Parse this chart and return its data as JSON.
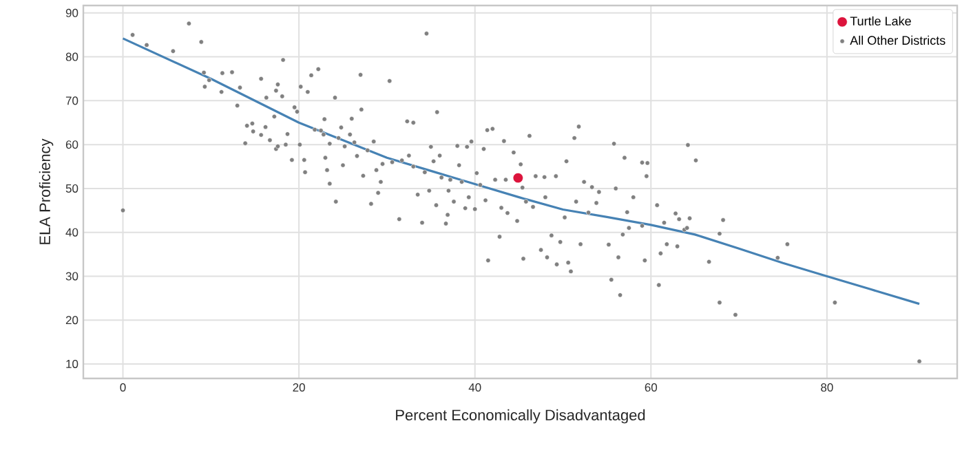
{
  "chart_data": {
    "type": "scatter",
    "xlabel": "Percent Economically Disadvantaged",
    "ylabel": "ELA Proficiency",
    "xlim": [
      -4.5,
      94.8
    ],
    "ylim": [
      6.7,
      91.7
    ],
    "xticks": [
      0,
      20,
      40,
      60,
      80
    ],
    "yticks": [
      10,
      20,
      30,
      40,
      50,
      60,
      70,
      80,
      90
    ],
    "grid": true,
    "legend": "top right",
    "marker": "circle",
    "series": [
      {
        "name": "Turtle Lake",
        "color": "#dc143c",
        "x": [
          44.9
        ],
        "values": [
          52.4
        ]
      },
      {
        "name": "All Other Districts",
        "color": "#808080",
        "x": [
          0,
          1.1,
          2.7,
          5.7,
          7.5,
          8.9,
          9.2,
          9.3,
          9.8,
          11.3,
          11.2,
          12.4,
          13,
          13.3,
          14.1,
          13.9,
          14.7,
          14.8,
          15.7,
          15.7,
          16.3,
          16.2,
          16.7,
          17.2,
          17.4,
          17.6,
          17.4,
          17.6,
          18.1,
          18.2,
          18.7,
          18.5,
          19.2,
          19.5,
          19.8,
          20.2,
          20.1,
          20.6,
          20.7,
          21,
          21.4,
          21.8,
          22.2,
          22.5,
          22.9,
          22.8,
          23,
          23.2,
          23.5,
          23.5,
          24.1,
          24.2,
          24.5,
          24.8,
          25,
          25.2,
          25.8,
          26,
          26.3,
          26.6,
          27,
          27.1,
          27.3,
          27.8,
          28.2,
          28.5,
          28.8,
          29,
          29.3,
          29.5,
          30.3,
          30.6,
          31.4,
          31.7,
          32.3,
          32.5,
          33,
          33,
          33.5,
          34,
          34.3,
          34.5,
          34.8,
          35,
          35.3,
          35.6,
          35.7,
          36,
          36.2,
          36.7,
          36.9,
          37,
          37.2,
          37.6,
          38,
          38.2,
          38.5,
          38.9,
          39.1,
          39.3,
          39.6,
          40,
          40.2,
          40.6,
          41,
          41.2,
          41.4,
          41.5,
          42,
          42.3,
          42.8,
          43,
          43.3,
          43.5,
          43.7,
          44.4,
          44.8,
          45.2,
          45.4,
          45.5,
          45.8,
          46.2,
          46.6,
          46.9,
          47.5,
          47.9,
          48,
          48.2,
          48.7,
          49.2,
          49.3,
          49.7,
          50.2,
          50.4,
          50.6,
          50.9,
          51.3,
          51.5,
          51.8,
          52,
          52.4,
          52.9,
          53.3,
          53.8,
          54.1,
          55.2,
          55.5,
          55.8,
          56,
          56.3,
          56.5,
          56.8,
          57,
          57.3,
          57.5,
          58,
          59,
          59,
          59.3,
          59.5,
          59.6,
          60.7,
          60.9,
          61.1,
          61.5,
          61.8,
          62.8,
          63,
          63.2,
          63.8,
          64.1,
          64.4,
          64.2,
          65.1,
          66.6,
          67.8,
          67.8,
          68.2,
          69.6,
          74.4,
          75.5,
          80.9,
          90.5
        ],
        "values": [
          45,
          85,
          82.7,
          81.3,
          87.6,
          83.4,
          76.4,
          73.2,
          74.7,
          76.3,
          72,
          76.5,
          68.9,
          73,
          64.3,
          60.3,
          64.8,
          63,
          62.2,
          75,
          70.7,
          64,
          61,
          66.4,
          72.3,
          73.7,
          59,
          59.6,
          71,
          79.3,
          62.4,
          60,
          56.5,
          68.5,
          67.5,
          73.2,
          60,
          56.5,
          53.7,
          72,
          75.8,
          63.4,
          77.2,
          63.2,
          65.8,
          62.3,
          57,
          54.2,
          51.1,
          60.2,
          70.7,
          47,
          61.5,
          63.9,
          55.3,
          59.6,
          62.3,
          65.9,
          60.5,
          57.4,
          75.9,
          68,
          52.9,
          58.7,
          46.5,
          60.7,
          54.2,
          49,
          51.5,
          55.6,
          74.5,
          56,
          43,
          56.4,
          65.3,
          57.5,
          55,
          65,
          48.6,
          42.2,
          53.7,
          85.3,
          49.5,
          59.5,
          56.2,
          46.2,
          67.4,
          57.5,
          52.5,
          42,
          44,
          49.5,
          52,
          47,
          59.7,
          55.3,
          51.5,
          45.5,
          59.5,
          48,
          60.7,
          45.3,
          53.5,
          50.8,
          59,
          47.3,
          63.3,
          33.6,
          63.6,
          52,
          39,
          45.6,
          60.8,
          52,
          44.4,
          58.2,
          42.6,
          55.5,
          50.2,
          34,
          47,
          62,
          45.8,
          52.8,
          36,
          52.6,
          48,
          34.3,
          39.3,
          52.8,
          32.7,
          37.8,
          43.4,
          56.2,
          33.1,
          31.1,
          61.5,
          47,
          64.1,
          37.3,
          51.5,
          44.5,
          50.3,
          46.7,
          49.2,
          37.2,
          29.2,
          60.2,
          50,
          34.3,
          25.7,
          39.5,
          57,
          44.6,
          41,
          48,
          41.5,
          55.9,
          33.6,
          52.8,
          55.8,
          46.2,
          28,
          35.2,
          42.2,
          37.3,
          44.3,
          36.8,
          43,
          40.6,
          41,
          43.2,
          59.9,
          56.4,
          33.3,
          39.7,
          24,
          42.8,
          21.2,
          34.2,
          37.3,
          24,
          10.6
        ]
      },
      {
        "type": "line",
        "color": "#4682b4",
        "marker": "none",
        "x": [
          0,
          10,
          20,
          25,
          30,
          35,
          40,
          45,
          50,
          55,
          60,
          65,
          70,
          75,
          80,
          85,
          90.5
        ],
        "values": [
          84.2,
          75,
          65,
          61,
          57,
          54,
          51,
          48,
          45.2,
          43.5,
          41.7,
          39.5,
          36.3,
          33,
          30,
          27,
          23.7
        ]
      }
    ]
  }
}
